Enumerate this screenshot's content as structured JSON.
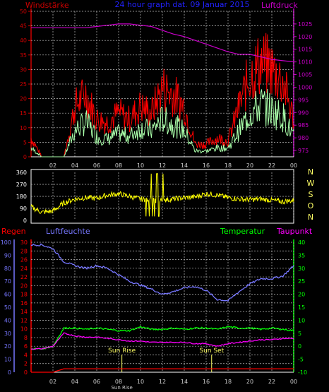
{
  "header": {
    "left_label": "Windstärke",
    "title": "24 hour graph dat. 09 Januar 2015",
    "right_label": "Luftdruck"
  },
  "colors": {
    "wind_axis": "#cc0000",
    "title": "#2222ff",
    "pressure": "#cc00cc",
    "gust": "#ff0000",
    "wind": "#aaffaa",
    "direction": "#ffff00",
    "rain": "#ff0000",
    "humidity": "#7777ff",
    "temperature": "#00ff00",
    "dewpoint": "#ff00ff",
    "grid": "#bbbbbb",
    "sun": "#ffff66"
  },
  "x_ticks": [
    "02",
    "04",
    "06",
    "08",
    "10",
    "12",
    "14",
    "16",
    "18",
    "20",
    "22",
    "00"
  ],
  "chart_data": [
    {
      "type": "line",
      "title": "24 hour graph dat. 09 Januar 2015",
      "ylabel": "Windstärke",
      "y2label": "Luftdruck",
      "ylim": [
        0,
        50
      ],
      "y2lim": [
        972.5,
        1030
      ],
      "yticks": [
        0,
        5,
        10,
        15,
        20,
        25,
        30,
        35,
        40,
        45,
        50
      ],
      "y2ticks": [
        975,
        980,
        985,
        990,
        995,
        1000,
        1005,
        1010,
        1015,
        1020,
        1025
      ],
      "x": [
        0,
        1,
        2,
        3,
        4,
        5,
        6,
        7,
        8,
        9,
        10,
        11,
        12,
        13,
        14,
        15,
        16,
        17,
        18,
        19,
        20,
        21,
        22,
        23,
        24
      ],
      "series": [
        {
          "key": "gust",
          "values": [
            6,
            0,
            0,
            0,
            16,
            20,
            12,
            11,
            14,
            12,
            16,
            14,
            22,
            20,
            16,
            4,
            4,
            6,
            5,
            16,
            26,
            30,
            28,
            24,
            12
          ]
        },
        {
          "key": "wind",
          "values": [
            3,
            0,
            0,
            0,
            9,
            12,
            7,
            6,
            8,
            7,
            10,
            9,
            13,
            11,
            9,
            2,
            2,
            3,
            3,
            9,
            15,
            18,
            16,
            14,
            7
          ]
        },
        {
          "key": "pressure",
          "values": [
            1023.5,
            1023.5,
            1023.5,
            1023.5,
            1023.5,
            1023.5,
            1024,
            1024.5,
            1025,
            1025,
            1024.5,
            1024,
            1022.5,
            1021,
            1020,
            1018.5,
            1017,
            1015.5,
            1014,
            1013,
            1013,
            1012,
            1011,
            1010.5,
            1010
          ]
        }
      ]
    },
    {
      "type": "line",
      "side_labels": [
        "N",
        "W",
        "S",
        "O",
        "N"
      ],
      "yticks": [
        0,
        90,
        180,
        270,
        360
      ],
      "ylim": [
        0,
        360
      ],
      "x": [
        0,
        1,
        2,
        3,
        4,
        5,
        6,
        7,
        8,
        9,
        10,
        11,
        12,
        13,
        14,
        15,
        16,
        17,
        18,
        19,
        20,
        21,
        22,
        23,
        24
      ],
      "series": [
        {
          "key": "direction",
          "values": [
            100,
            60,
            70,
            130,
            160,
            170,
            165,
            190,
            200,
            180,
            160,
            150,
            150,
            160,
            170,
            175,
            200,
            190,
            170,
            160,
            155,
            160,
            150,
            140,
            150
          ]
        }
      ]
    },
    {
      "type": "line",
      "legend": [
        "Regen",
        "Luftfeuchte",
        "Temperatur",
        "Taupunkt"
      ],
      "humidity_ticks": [
        0,
        10,
        20,
        30,
        40,
        50,
        60,
        70,
        80,
        90,
        100
      ],
      "rain_ticks": [
        0,
        2,
        4,
        6,
        8,
        10,
        12,
        14,
        16,
        18,
        20,
        22,
        24,
        26,
        28,
        30
      ],
      "temp_ticks": [
        -10,
        -5,
        0,
        5,
        10,
        15,
        20,
        25,
        30,
        35,
        40
      ],
      "humidity_lim": [
        0,
        100
      ],
      "rain_lim": [
        0,
        30
      ],
      "temp_lim": [
        -10,
        40
      ],
      "annotations": [
        "Sun Rise",
        "Sun Set"
      ],
      "sunrise_hour": 8.3,
      "sunset_hour": 16.5,
      "x": [
        0,
        1,
        2,
        3,
        4,
        5,
        6,
        7,
        8,
        9,
        10,
        11,
        12,
        13,
        14,
        15,
        16,
        17,
        18,
        19,
        20,
        21,
        22,
        23,
        24
      ],
      "series": [
        {
          "key": "rain",
          "values": [
            0,
            0,
            0,
            0.8,
            0.8,
            0.8,
            0.8,
            0.8,
            0.8,
            0.8,
            0.8,
            0.8,
            0.8,
            0.8,
            0.8,
            0.8,
            0.8,
            0.8,
            0.8,
            0.8,
            0.8,
            0.8,
            0.8,
            0.8,
            0.8
          ]
        },
        {
          "key": "humidity",
          "values": [
            98,
            98,
            95,
            85,
            82,
            80,
            82,
            80,
            75,
            70,
            67,
            64,
            60,
            62,
            65,
            66,
            63,
            56,
            55,
            62,
            68,
            72,
            72,
            74,
            82
          ]
        },
        {
          "key": "temperature",
          "values": [
            -1,
            -1,
            0,
            7,
            7,
            6.5,
            7,
            6.5,
            6,
            6,
            7.5,
            6.5,
            6.5,
            7,
            6.5,
            7,
            7,
            6.5,
            7.5,
            7,
            7,
            6.5,
            7,
            6.5,
            6
          ]
        },
        {
          "key": "dewpoint",
          "values": [
            -1,
            -1,
            0,
            5,
            4,
            3.5,
            3.5,
            3,
            2.5,
            2,
            2,
            1.5,
            1.5,
            1.5,
            1.5,
            1,
            1,
            0,
            1,
            1.5,
            2,
            2.5,
            2.5,
            3,
            3
          ]
        }
      ]
    }
  ],
  "bottom": {
    "regen_label": "Regen",
    "feuchte_label": "Luftfeuchte",
    "temp_label": "Temperatur",
    "taupunkt_label": "Taupunkt",
    "sunrise_label": "Sun Rise",
    "sunset_label": "Sun Set",
    "x_tick_sunrise": "Sun Rise"
  }
}
